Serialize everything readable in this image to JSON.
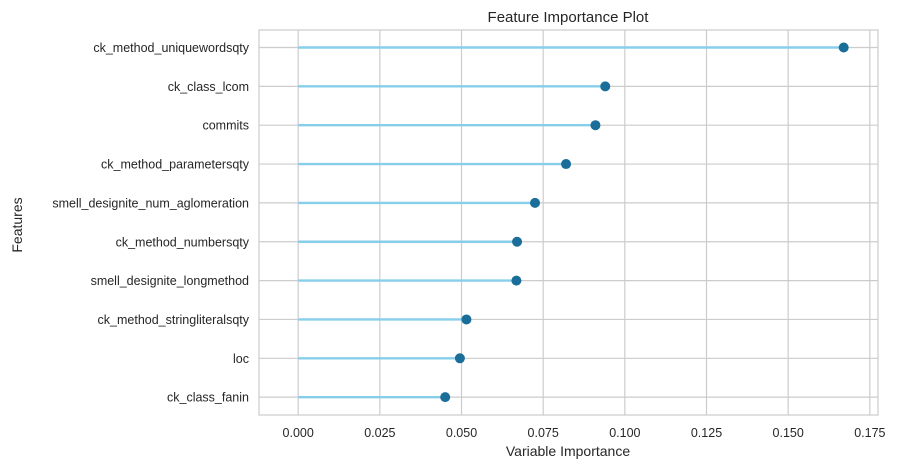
{
  "chart_data": {
    "type": "lollipop",
    "title": "Feature Importance Plot",
    "xlabel": "Variable Importance",
    "ylabel": "Features",
    "xlim": [
      -0.012,
      0.1775
    ],
    "xticks": [
      0.0,
      0.025,
      0.05,
      0.075,
      0.1,
      0.125,
      0.15,
      0.175
    ],
    "xtick_labels": [
      "0.000",
      "0.025",
      "0.050",
      "0.075",
      "0.100",
      "0.125",
      "0.150",
      "0.175"
    ],
    "grid": true,
    "categories": [
      "ck_method_uniquewordsqty",
      "ck_class_lcom",
      "commits",
      "ck_method_parametersqty",
      "smell_designite_num_aglomeration",
      "ck_method_numbersqty",
      "smell_designite_longmethod",
      "ck_method_stringliteralsqty",
      "loc",
      "ck_class_fanin"
    ],
    "values": [
      0.167,
      0.094,
      0.091,
      0.082,
      0.0725,
      0.067,
      0.0668,
      0.0515,
      0.0495,
      0.045
    ],
    "colors": {
      "stem": "#87ceeb",
      "marker": "#1a6e99",
      "grid": "#cccccc",
      "axis": "#cccccc"
    }
  }
}
